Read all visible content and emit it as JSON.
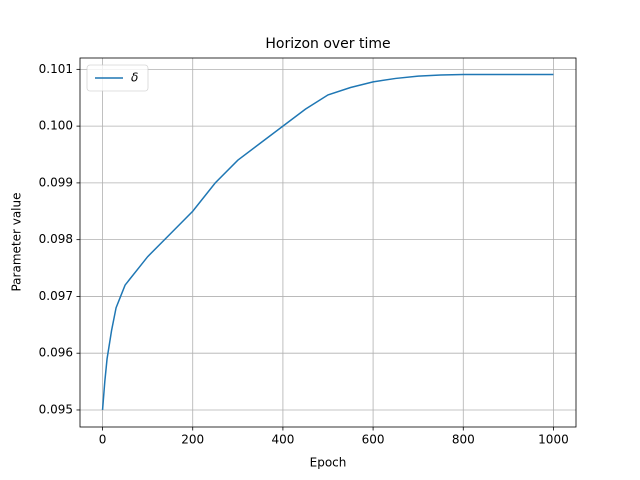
{
  "chart_data": {
    "type": "line",
    "title": "Horizon over time",
    "x_label": "Epoch",
    "y_label": "Parameter value",
    "x": [
      0,
      5,
      10,
      20,
      30,
      40,
      50,
      60,
      80,
      100,
      150,
      200,
      250,
      300,
      350,
      400,
      450,
      500,
      550,
      600,
      650,
      700,
      750,
      800,
      900,
      1000
    ],
    "series": [
      {
        "name": "δ",
        "color": "#1f77b4",
        "values": [
          0.095,
          0.0955,
          0.0959,
          0.0964,
          0.0968,
          0.097,
          0.0972,
          0.0973,
          0.0975,
          0.0977,
          0.0981,
          0.0985,
          0.099,
          0.0994,
          0.0997,
          0.1,
          0.1003,
          0.10055,
          0.10068,
          0.10078,
          0.10084,
          0.10088,
          0.1009,
          0.10091,
          0.10091,
          0.10091
        ]
      }
    ],
    "xlim": [
      -50,
      1050
    ],
    "ylim": [
      0.0947,
      0.1012
    ],
    "xticks": [
      0,
      200,
      400,
      600,
      800,
      1000
    ],
    "yticks": [
      0.095,
      0.096,
      0.097,
      0.098,
      0.099,
      {
        "value": 0.1,
        "label": "0.100"
      },
      0.101
    ],
    "grid": true,
    "legend": "upper left"
  }
}
